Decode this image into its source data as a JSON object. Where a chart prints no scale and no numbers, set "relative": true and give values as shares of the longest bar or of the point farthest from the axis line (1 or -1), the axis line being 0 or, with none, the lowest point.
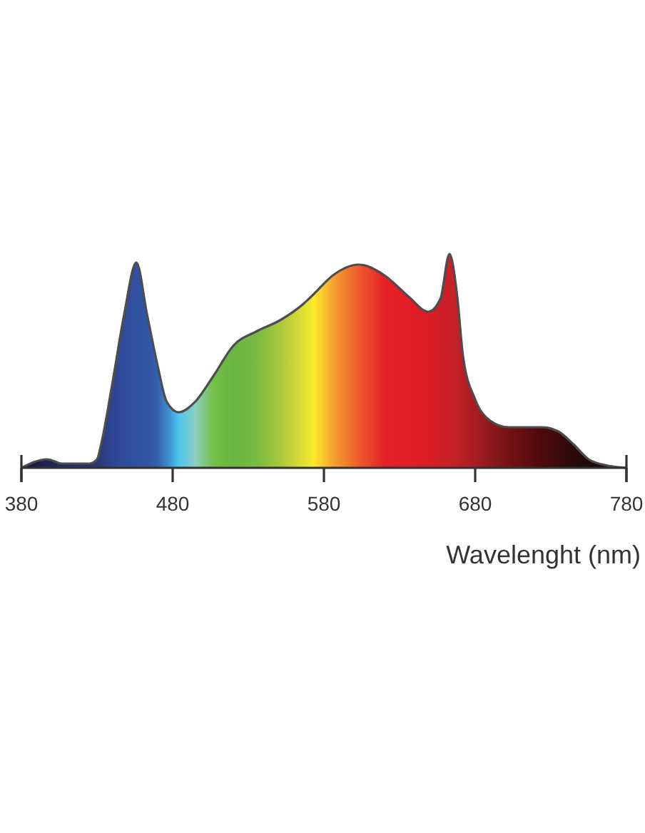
{
  "chart_data": {
    "type": "area",
    "xlabel": "Wavelenght (nm)",
    "relative": true,
    "xlim": [
      380,
      780
    ],
    "xticks": [
      380,
      480,
      580,
      680,
      780
    ],
    "x": [
      380,
      397,
      407,
      425,
      430,
      433,
      440,
      448,
      456,
      463,
      470,
      476,
      484,
      495,
      507,
      520,
      536,
      551,
      567,
      573,
      586,
      603,
      620,
      636,
      649,
      657,
      663,
      668,
      672,
      680,
      690,
      702,
      724,
      735,
      745,
      755,
      768,
      780
    ],
    "series": [
      {
        "color": "#4d4d4d",
        "values": [
          0,
          0.04,
          0.02,
          0.02,
          0.04,
          0.12,
          0.39,
          0.72,
          0.96,
          0.72,
          0.48,
          0.31,
          0.26,
          0.31,
          0.43,
          0.57,
          0.64,
          0.69,
          0.77,
          0.81,
          0.9,
          0.95,
          0.9,
          0.8,
          0.73,
          0.79,
          1,
          0.81,
          0.52,
          0.32,
          0.22,
          0.19,
          0.19,
          0.17,
          0.11,
          0.04,
          0.01,
          0
        ],
        "colors": [
          "#15142e",
          "#1e2456",
          "#212a63",
          "#263373",
          "#283778",
          "#2a3b80",
          "#2d4592",
          "#2f4c9c",
          "#3050a0",
          "#3253a3",
          "#3460ac",
          "#3d86c8",
          "#4cc6ec",
          "#8ccfc0",
          "#74bf45",
          "#6ab443",
          "#7bbb41",
          "#a9c73b",
          "#e2e032",
          "#fbec2a",
          "#f6a22f",
          "#ef5a2c",
          "#e52127",
          "#e21d25",
          "#d91e26",
          "#d11f27",
          "#c8222a",
          "#c02127",
          "#b81f25",
          "#a61d22",
          "#8e191c",
          "#751215",
          "#4e0a0c",
          "#3c0a0b",
          "#2a0a0a",
          "#1e0a0a",
          "#170909",
          "#140909"
        ]
      }
    ]
  }
}
